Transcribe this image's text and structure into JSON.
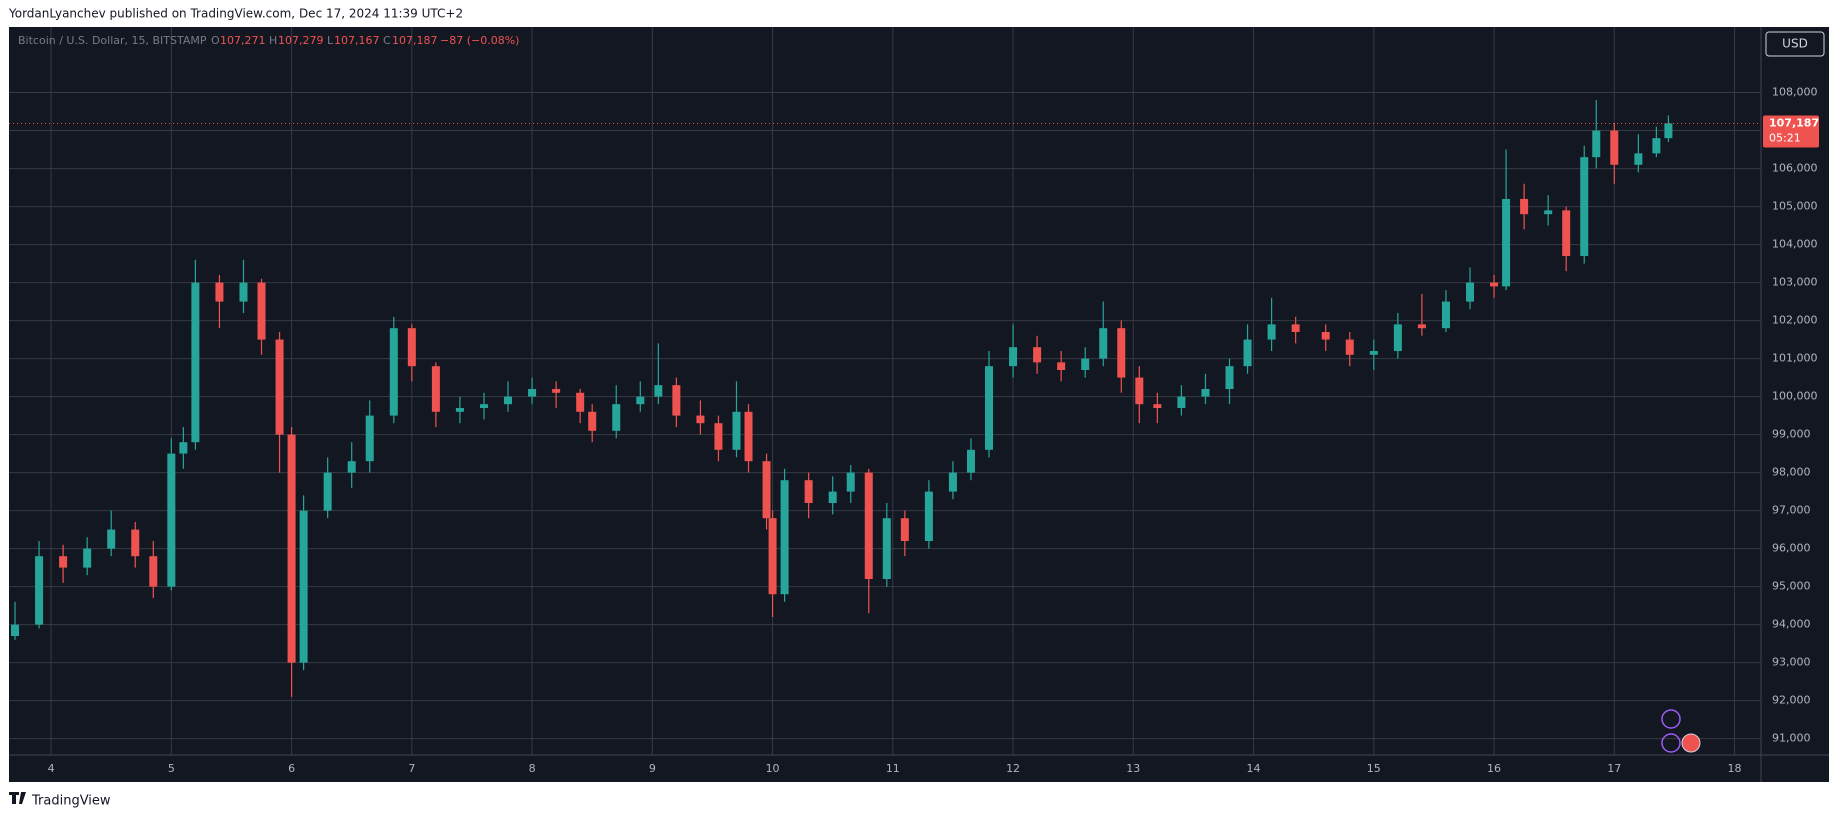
{
  "header": {
    "author_line": "YordanLyanchev published on TradingView.com, Dec 17, 2024 11:39 UTC+2"
  },
  "footer": {
    "brand": "TradingView"
  },
  "chart_data": {
    "type": "candlestick",
    "symbol": "Bitcoin / U.S. Dollar, 15, BITSTAMP",
    "legend": {
      "o_label": "O",
      "o": "107,271",
      "h_label": "H",
      "h": "107,279",
      "l_label": "L",
      "l": "107,167",
      "c_label": "C",
      "c": "107,187",
      "change": "−87 (−0.08%)"
    },
    "currency_button": "USD",
    "last_price_label": "107,187",
    "countdown": "05:21",
    "up_color": "#26a69a",
    "down_color": "#ef5350",
    "grid": true,
    "x": [
      3.7,
      3.9,
      4.1,
      4.3,
      4.5,
      4.7,
      4.85,
      5.0,
      5.1,
      5.2,
      5.4,
      5.6,
      5.75,
      5.9,
      6.0,
      6.1,
      6.3,
      6.5,
      6.65,
      6.85,
      7.0,
      7.2,
      7.4,
      7.6,
      7.8,
      8.0,
      8.2,
      8.4,
      8.5,
      8.7,
      8.9,
      9.05,
      9.2,
      9.4,
      9.55,
      9.7,
      9.8,
      9.95,
      10.0,
      10.1,
      10.3,
      10.5,
      10.65,
      10.8,
      10.95,
      11.1,
      11.3,
      11.5,
      11.65,
      11.8,
      12.0,
      12.2,
      12.4,
      12.6,
      12.75,
      12.9,
      13.05,
      13.2,
      13.4,
      13.6,
      13.8,
      13.95,
      14.15,
      14.35,
      14.6,
      14.8,
      15.0,
      15.2,
      15.4,
      15.6,
      15.8,
      16.0,
      16.1,
      16.25,
      16.45,
      16.6,
      16.75,
      16.85,
      17.0,
      17.2,
      17.35,
      17.45
    ],
    "open": [
      93700,
      94000,
      95800,
      95500,
      96000,
      96500,
      95800,
      95000,
      98500,
      98800,
      103000,
      102500,
      103000,
      101500,
      99000,
      93000,
      97000,
      98000,
      98300,
      99500,
      101800,
      100800,
      99600,
      99700,
      99800,
      100000,
      100200,
      100100,
      99600,
      99100,
      99800,
      100000,
      100300,
      99500,
      99300,
      98600,
      99600,
      98300,
      96800,
      94800,
      97800,
      97200,
      97500,
      98000,
      95200,
      96800,
      96200,
      97500,
      98000,
      98600,
      100800,
      101300,
      100900,
      100700,
      101000,
      101800,
      100500,
      99800,
      99700,
      100000,
      100200,
      100800,
      101500,
      101900,
      101700,
      101500,
      101100,
      101200,
      101900,
      101800,
      102500,
      103000,
      102900,
      105200,
      104800,
      104900,
      103700,
      106300,
      107000,
      106100,
      106400,
      106800
    ],
    "high": [
      94600,
      96200,
      96100,
      96300,
      97000,
      96700,
      96200,
      98900,
      99200,
      103600,
      103200,
      103600,
      103100,
      101700,
      99200,
      97400,
      98400,
      98800,
      99900,
      102100,
      101900,
      100900,
      100000,
      100100,
      100400,
      100500,
      100400,
      100200,
      99800,
      100300,
      100400,
      101400,
      100500,
      99900,
      99500,
      100400,
      99800,
      98500,
      97000,
      98100,
      98000,
      97900,
      98200,
      98100,
      97200,
      97000,
      97800,
      98300,
      98900,
      101200,
      101900,
      101600,
      101200,
      101300,
      102500,
      102000,
      100800,
      100100,
      100300,
      100600,
      101000,
      101900,
      102600,
      102100,
      101900,
      101700,
      101500,
      102200,
      102700,
      102800,
      103400,
      103200,
      106500,
      105600,
      105300,
      105000,
      106600,
      107800,
      107200,
      106900,
      107100,
      107400
    ],
    "low": [
      93600,
      93900,
      95100,
      95300,
      95800,
      95500,
      94700,
      94900,
      98100,
      98600,
      101800,
      102200,
      101100,
      98000,
      92100,
      92800,
      96800,
      97600,
      98000,
      99300,
      100400,
      99200,
      99300,
      99400,
      99600,
      99800,
      99700,
      99300,
      98800,
      98900,
      99600,
      99800,
      99200,
      99000,
      98300,
      98400,
      98000,
      96500,
      94200,
      94600,
      96800,
      96900,
      97200,
      94300,
      95000,
      95800,
      96000,
      97300,
      97800,
      98400,
      100500,
      100600,
      100400,
      100500,
      100800,
      100100,
      99300,
      99300,
      99500,
      99800,
      99800,
      100600,
      101200,
      101400,
      101200,
      100800,
      100700,
      101000,
      101600,
      101700,
      102300,
      102600,
      102800,
      104400,
      104500,
      103300,
      103500,
      106000,
      105600,
      105900,
      106300,
      106700
    ],
    "close": [
      94000,
      95800,
      95500,
      96000,
      96500,
      95800,
      95000,
      98500,
      98800,
      103000,
      102500,
      103000,
      101500,
      99000,
      93000,
      97000,
      98000,
      98300,
      99500,
      101800,
      100800,
      99600,
      99700,
      99800,
      100000,
      100200,
      100100,
      99600,
      99100,
      99800,
      100000,
      100300,
      99500,
      99300,
      98600,
      99600,
      98300,
      96800,
      94800,
      97800,
      97200,
      97500,
      98000,
      95200,
      96800,
      96200,
      97500,
      98000,
      98600,
      100800,
      101300,
      100900,
      100700,
      101000,
      101800,
      100500,
      99800,
      99700,
      100000,
      100200,
      100800,
      101500,
      101900,
      101700,
      101500,
      101100,
      101200,
      101900,
      101800,
      102500,
      103000,
      102900,
      105200,
      104800,
      104900,
      103700,
      106300,
      107000,
      106100,
      106400,
      106800,
      107187
    ],
    "xlim": [
      3.65,
      18.22
    ],
    "xticks": [
      4,
      5,
      6,
      7,
      8,
      9,
      10,
      11,
      12,
      13,
      14,
      15,
      16,
      17,
      18
    ],
    "ylim": [
      90569,
      109725
    ],
    "yticks": [
      {
        "value": 91000,
        "label": "91,000"
      },
      {
        "value": 92000,
        "label": "92,000"
      },
      {
        "value": 93000,
        "label": "93,000"
      },
      {
        "value": 94000,
        "label": "94,000"
      },
      {
        "value": 95000,
        "label": "95,000"
      },
      {
        "value": 96000,
        "label": "96,000"
      },
      {
        "value": 97000,
        "label": "97,000"
      },
      {
        "value": 98000,
        "label": "98,000"
      },
      {
        "value": 99000,
        "label": "99,000"
      },
      {
        "value": 100000,
        "label": "100,000"
      },
      {
        "value": 101000,
        "label": "101,000"
      },
      {
        "value": 102000,
        "label": "102,000"
      },
      {
        "value": 103000,
        "label": "103,000"
      },
      {
        "value": 104000,
        "label": "104,000"
      },
      {
        "value": 105000,
        "label": "105,000"
      },
      {
        "value": 106000,
        "label": "106,000"
      },
      {
        "value": 107000,
        "label": "107,000"
      },
      {
        "value": 108000,
        "label": "108,000"
      }
    ]
  }
}
